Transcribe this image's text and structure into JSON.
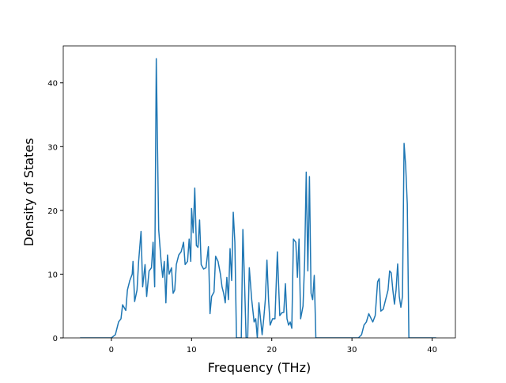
{
  "chart_data": {
    "type": "line",
    "x_label": "Frequency (THz)",
    "y_label": "Density of States",
    "xlim": [
      -6.0,
      42.9
    ],
    "ylim": [
      0,
      45.8
    ],
    "xticks": [
      0,
      10,
      20,
      30,
      40
    ],
    "yticks": [
      0,
      10,
      20,
      30,
      40
    ],
    "color": "#1f77b4",
    "x": [
      -3.9,
      0,
      0.5,
      0.9,
      1.2,
      1.4,
      1.8,
      2.0,
      2.3,
      2.6,
      2.7,
      2.9,
      3.2,
      3.4,
      3.7,
      3.9,
      4.2,
      4.4,
      4.7,
      5.0,
      5.2,
      5.4,
      5.6,
      5.9,
      6.2,
      6.4,
      6.6,
      6.8,
      7.0,
      7.2,
      7.5,
      7.7,
      7.9,
      8.1,
      8.4,
      8.7,
      9.0,
      9.2,
      9.5,
      9.7,
      9.9,
      10.0,
      10.2,
      10.4,
      10.6,
      10.8,
      11.0,
      11.2,
      11.5,
      11.8,
      12.1,
      12.3,
      12.5,
      12.8,
      13.0,
      13.3,
      13.6,
      13.8,
      14.0,
      14.2,
      14.4,
      14.6,
      14.8,
      15.0,
      15.2,
      15.4,
      15.6,
      16.2,
      16.4,
      16.6,
      16.8,
      17.0,
      17.2,
      17.5,
      17.8,
      18.0,
      18.2,
      18.4,
      18.6,
      18.8,
      19.0,
      19.2,
      19.4,
      19.6,
      19.8,
      20.1,
      20.4,
      20.7,
      21.0,
      21.3,
      21.5,
      21.7,
      21.9,
      22.1,
      22.3,
      22.5,
      22.7,
      23.0,
      23.2,
      23.4,
      23.6,
      23.9,
      24.1,
      24.3,
      24.5,
      24.7,
      24.9,
      25.1,
      25.3,
      25.5,
      30.8,
      31.2,
      31.5,
      31.8,
      32.1,
      32.4,
      32.6,
      32.9,
      33.2,
      33.4,
      33.6,
      33.9,
      34.2,
      34.5,
      34.7,
      34.9,
      35.1,
      35.3,
      35.5,
      35.7,
      35.9,
      36.1,
      36.3,
      36.5,
      36.7,
      36.9,
      37.1,
      40.5
    ],
    "values": [
      0,
      0,
      0.5,
      2.5,
      3,
      5.2,
      4.3,
      7.5,
      9,
      10,
      12,
      5.7,
      7.5,
      12,
      16.7,
      8,
      11.5,
      6.5,
      10.5,
      11,
      15,
      8,
      43.8,
      17,
      12,
      9.5,
      12,
      5.5,
      13,
      10,
      11,
      7,
      7.5,
      11.5,
      13,
      13.5,
      15,
      11.5,
      12,
      15.5,
      12,
      20.3,
      16.5,
      23.5,
      14.5,
      14.2,
      18.5,
      11.5,
      10.8,
      11,
      14.3,
      3.8,
      6.5,
      7.2,
      12.8,
      12,
      10,
      8,
      7,
      5.5,
      9.5,
      6,
      14,
      9,
      19.7,
      15,
      0,
      0,
      17,
      9,
      0,
      0,
      11,
      6,
      2.5,
      3,
      0,
      5.5,
      3,
      0.5,
      3,
      6,
      12.2,
      6,
      2,
      3,
      3,
      13.5,
      3.5,
      4,
      4,
      8.5,
      3,
      2,
      2.5,
      1.5,
      15.5,
      15,
      9.5,
      15.5,
      3,
      5,
      12,
      26,
      10.5,
      25.3,
      7,
      6,
      9.8,
      0,
      0,
      0.5,
      2,
      2.5,
      3.8,
      3,
      2.5,
      3.5,
      8.8,
      9.3,
      4.2,
      4.5,
      6,
      7.5,
      10.5,
      10.2,
      7.5,
      5.3,
      7.5,
      11.6,
      6.5,
      4.8,
      6.5,
      30.5,
      27,
      21,
      0,
      0
    ]
  }
}
